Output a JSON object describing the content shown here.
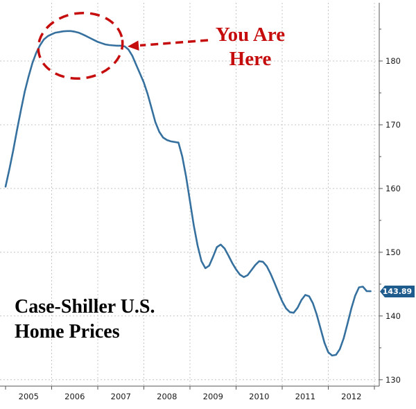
{
  "title": {
    "line1": "Case-Shiller U.S.",
    "line2": "Home Prices"
  },
  "annotation": {
    "line1": "You Are",
    "line2": "Here",
    "full_text": "You Are Here"
  },
  "last_value_label": "143.89",
  "colors": {
    "line": "#35709e",
    "grid": "#c4c4c4",
    "axis": "#555555",
    "axis_text": "#1a1a1a",
    "annotation": "#c60d0d",
    "badge_bg": "#1f5c8e",
    "badge_text": "#ffffff",
    "title_text": "#000000",
    "background": "#ffffff"
  },
  "chart_data": {
    "type": "line",
    "title": "Case-Shiller U.S. Home Prices",
    "xlabel": "",
    "ylabel": "",
    "legend": "none",
    "grid": "dotted",
    "x_start_year": 2005,
    "frequency": "monthly",
    "x_tick_labels": [
      "2005",
      "2006",
      "2007",
      "2008",
      "2009",
      "2010",
      "2011",
      "2012"
    ],
    "y_ticks": [
      130,
      140,
      150,
      160,
      170,
      180
    ],
    "ylim": [
      129.0,
      188.7
    ],
    "xlim": [
      2005.0,
      2013.1
    ],
    "last_value": 143.89,
    "annotation_target": "curve plateau near early 2007, peak region circled",
    "values": [
      160.3,
      163.0,
      166.0,
      169.2,
      172.3,
      175.2,
      177.6,
      179.7,
      181.3,
      182.5,
      183.4,
      183.9,
      184.2,
      184.45,
      184.55,
      184.65,
      184.7,
      184.7,
      184.6,
      184.45,
      184.2,
      183.9,
      183.6,
      183.3,
      183.0,
      182.8,
      182.6,
      182.5,
      182.45,
      182.4,
      182.4,
      182.3,
      181.8,
      180.8,
      179.4,
      178.0,
      176.6,
      174.8,
      172.6,
      170.4,
      168.9,
      168.0,
      167.6,
      167.4,
      167.3,
      167.2,
      165.0,
      161.8,
      158.0,
      154.2,
      151.0,
      148.6,
      147.5,
      147.9,
      149.3,
      150.8,
      151.2,
      150.6,
      149.5,
      148.3,
      147.3,
      146.5,
      146.1,
      146.4,
      147.2,
      148.0,
      148.6,
      148.5,
      147.8,
      146.6,
      145.2,
      143.7,
      142.3,
      141.2,
      140.6,
      140.5,
      141.3,
      142.5,
      143.3,
      143.1,
      142.0,
      140.2,
      138.0,
      135.8,
      134.3,
      133.8,
      133.9,
      134.8,
      136.5,
      138.8,
      141.2,
      143.2,
      144.5,
      144.6,
      143.9,
      143.89
    ]
  }
}
